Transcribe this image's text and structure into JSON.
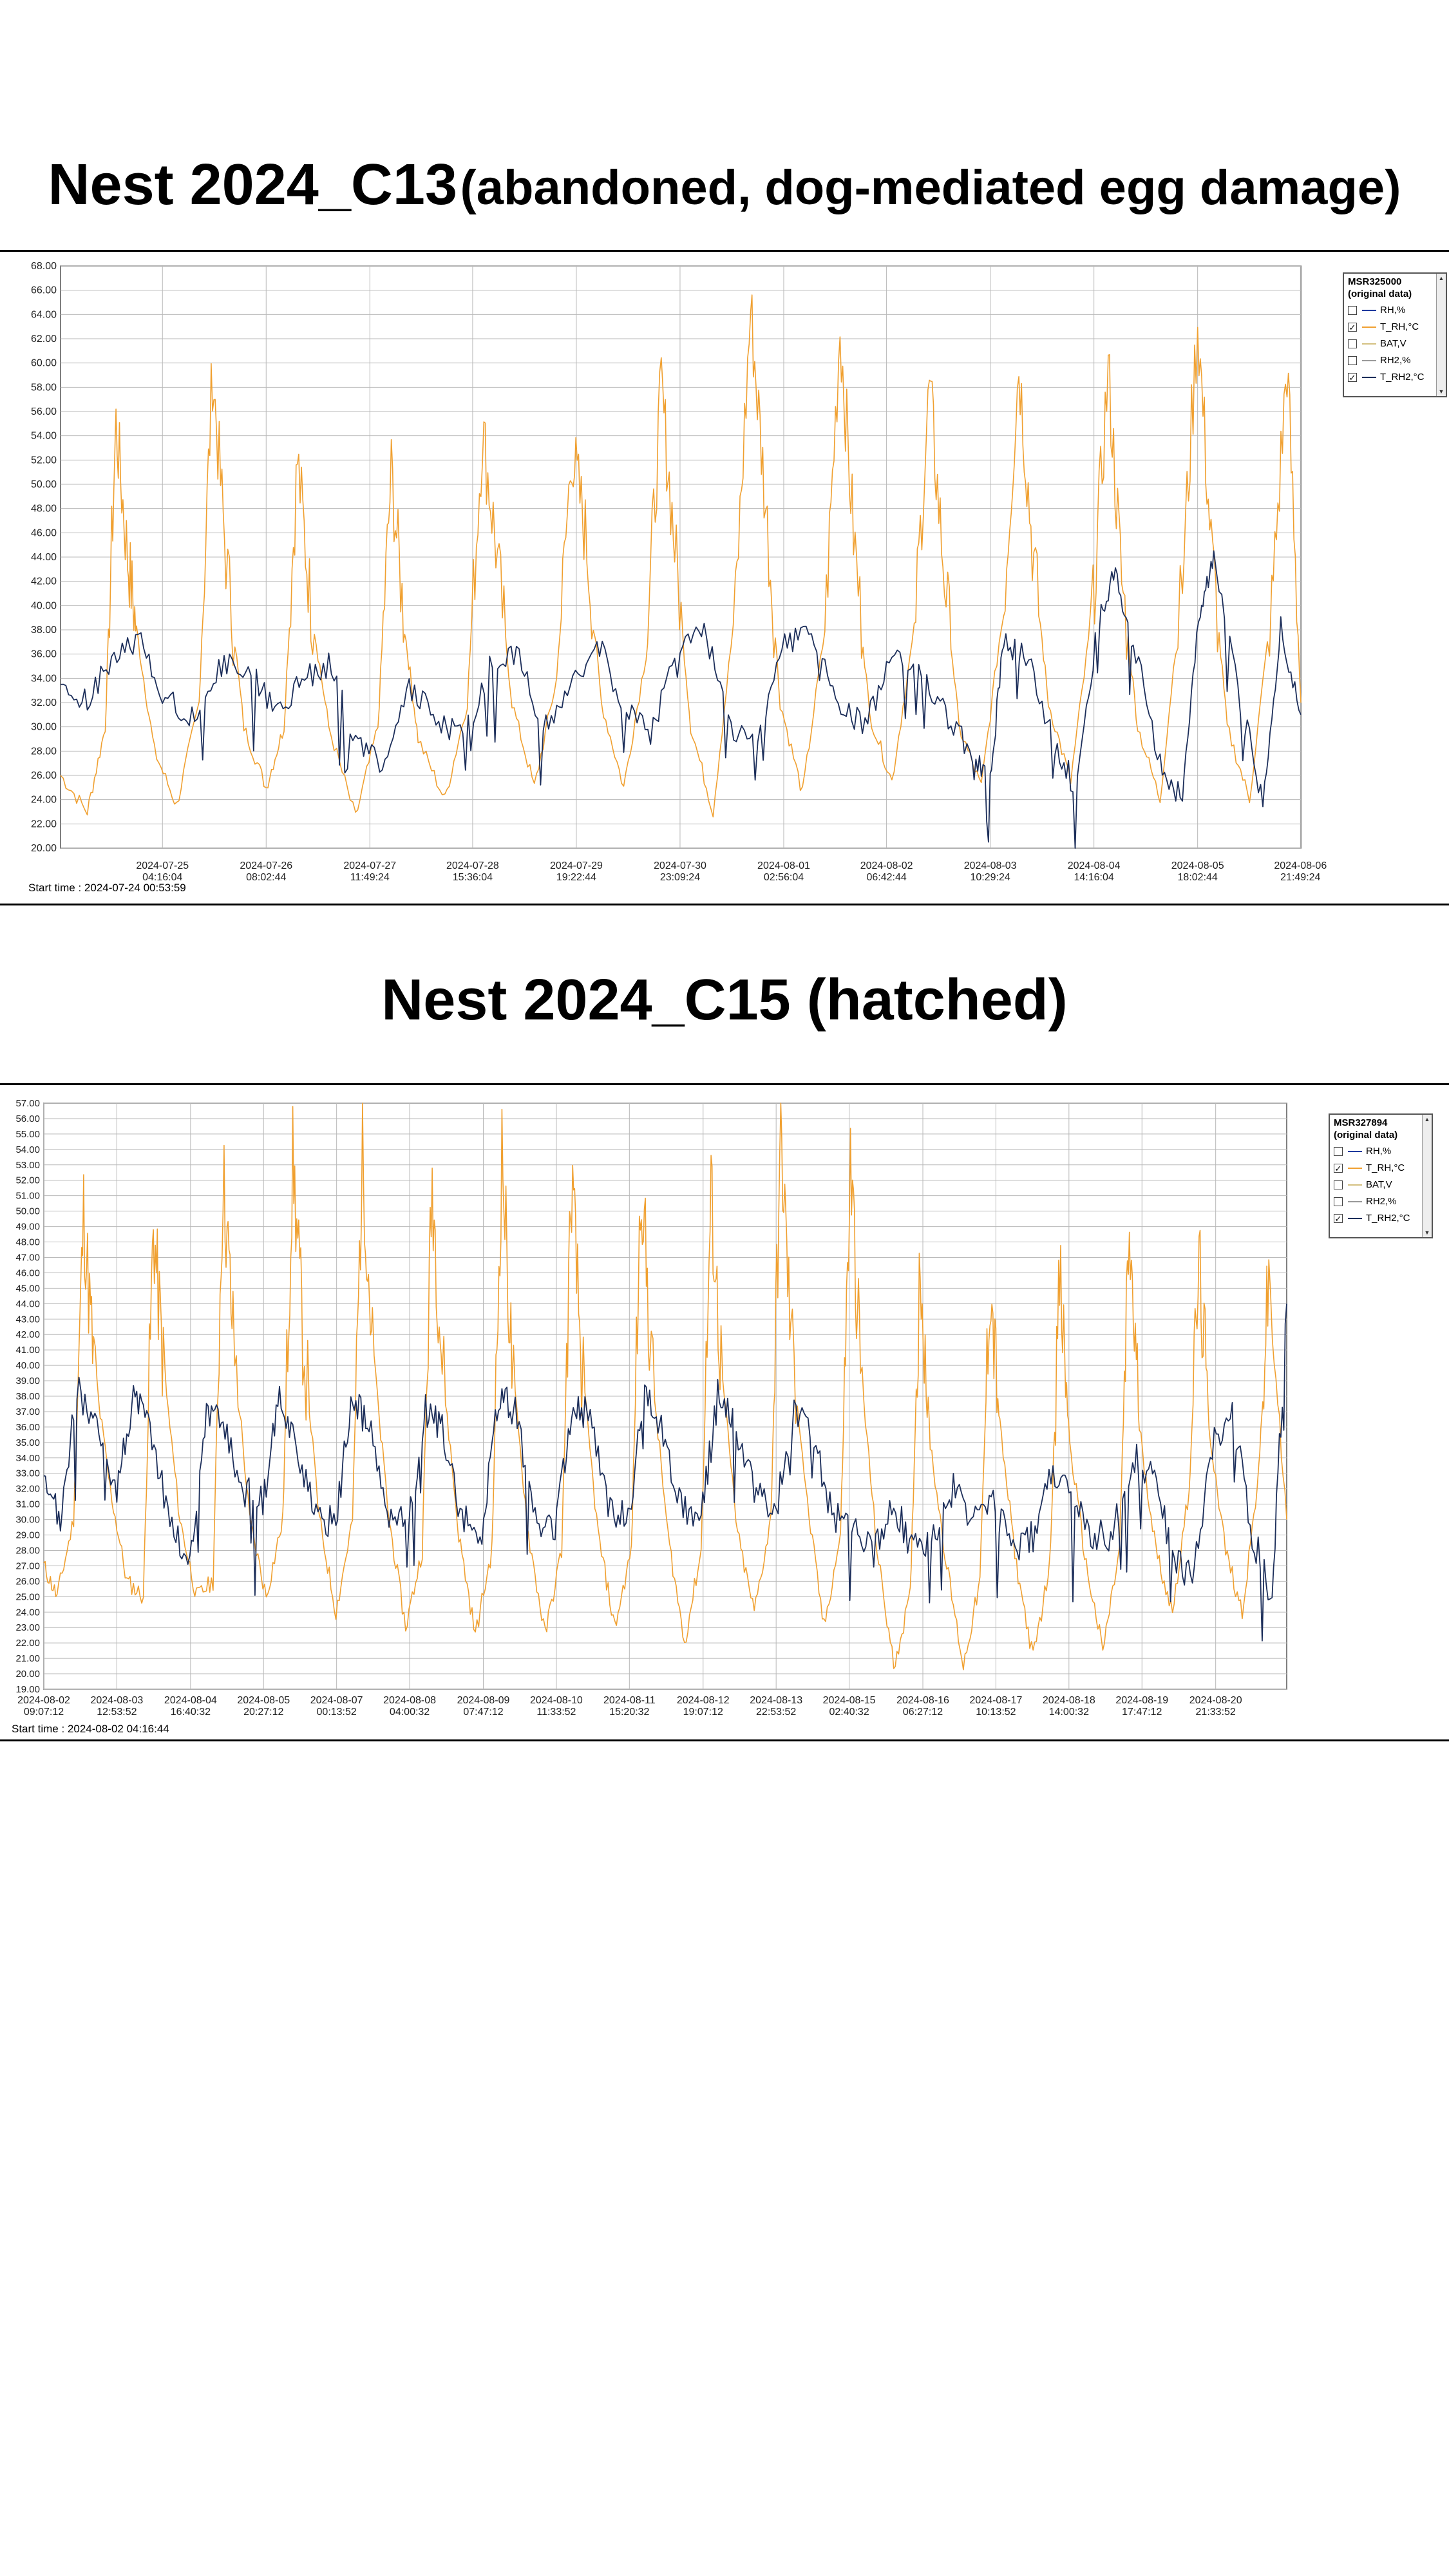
{
  "panels": [
    {
      "title_main": "Nest 2024_C13",
      "title_sub": "(abandoned, dog-mediated egg damage)",
      "start_time": "Start time : 2024-07-24 00:53:59",
      "legend": {
        "header": [
          "MSR325000",
          "(original data)"
        ],
        "items": [
          {
            "label": "RH,%",
            "checked": false,
            "color": "#1f3a9e"
          },
          {
            "label": "T_RH,°C",
            "checked": true,
            "color": "#f0a030"
          },
          {
            "label": "BAT,V",
            "checked": false,
            "color": "#d4c080"
          },
          {
            "label": "RH2,%",
            "checked": false,
            "color": "#999999"
          },
          {
            "label": "T_RH2,°C",
            "checked": true,
            "color": "#1c2e5a"
          }
        ]
      },
      "chart_data": {
        "type": "line",
        "ylim": [
          20,
          68
        ],
        "ystep": 2,
        "xlim": [
          0,
          13.875
        ],
        "x_unit": "days since start",
        "x_ticks": [
          {
            "date": "2024-07-25",
            "time": "04:16:04",
            "x": 1.14
          },
          {
            "date": "2024-07-26",
            "time": "08:02:44",
            "x": 2.3
          },
          {
            "date": "2024-07-27",
            "time": "11:49:24",
            "x": 3.46
          },
          {
            "date": "2024-07-28",
            "time": "15:36:04",
            "x": 4.61
          },
          {
            "date": "2024-07-29",
            "time": "19:22:44",
            "x": 5.77
          },
          {
            "date": "2024-07-30",
            "time": "23:09:24",
            "x": 6.93
          },
          {
            "date": "2024-08-01",
            "time": "02:56:04",
            "x": 8.09
          },
          {
            "date": "2024-08-02",
            "time": "06:42:44",
            "x": 9.24
          },
          {
            "date": "2024-08-03",
            "time": "10:29:24",
            "x": 10.4
          },
          {
            "date": "2024-08-04",
            "time": "14:16:04",
            "x": 11.56
          },
          {
            "date": "2024-08-05",
            "time": "18:02:44",
            "x": 12.72
          },
          {
            "date": "2024-08-06",
            "time": "21:49:24",
            "x": 13.87
          }
        ],
        "series": [
          {
            "name": "T_RH,°C",
            "color": "#f0a030",
            "daily_peaks": [
              55,
              59.5,
              52,
              51,
              54.5,
              53,
              58,
              64.5,
              63,
              58,
              60,
              59.5,
              63.5,
              60
            ],
            "daily_minima": [
              23,
              23.5,
              25,
              22.5,
              24,
              25,
              25,
              23,
              24.5,
              25.5,
              25,
              25.5,
              24,
              24
            ],
            "x": [
              0,
              0.3,
              0.5,
              0.62,
              0.75,
              0.85,
              1.05,
              1.3,
              1.55,
              1.7,
              1.85,
              2.05,
              2.3,
              2.5,
              2.65,
              2.8,
              3.0,
              3.3,
              3.55,
              3.7,
              3.85,
              4.0,
              4.3,
              4.55,
              4.72,
              4.87,
              5.05,
              5.3,
              5.55,
              5.72,
              5.87,
              6.05,
              6.3,
              6.55,
              6.72,
              6.87,
              7.05,
              7.3,
              7.55,
              7.72,
              7.87,
              8.05,
              8.3,
              8.55,
              8.72,
              8.87,
              9.05,
              9.3,
              9.55,
              9.72,
              9.87,
              10.05,
              10.3,
              10.55,
              10.72,
              10.87,
              11.05,
              11.3,
              11.55,
              11.72,
              11.87,
              12.05,
              12.3,
              12.55,
              12.72,
              12.87,
              13.05,
              13.3,
              13.55,
              13.72,
              13.875
            ],
            "y": [
              26,
              23,
              30,
              55,
              44,
              38,
              28,
              23.5,
              32,
              59.5,
              44,
              30,
              25,
              30,
              52,
              40,
              30,
              22.5,
              30,
              51,
              38,
              29,
              24,
              32,
              54.5,
              45,
              32,
              25,
              34,
              53,
              46,
              32,
              25,
              36,
              58,
              45,
              30,
              23,
              40,
              64.5,
              50,
              32,
              24.5,
              38,
              63,
              46,
              31,
              25.5,
              38,
              58,
              44,
              30,
              25,
              40,
              60,
              45,
              32,
              25.5,
              40,
              59.5,
              42,
              30,
              24,
              42,
              63.5,
              45,
              30,
              24,
              40,
              60,
              32
            ]
          },
          {
            "name": "T_RH2,°C",
            "color": "#1c2e5a",
            "x": [
              0,
              0.3,
              0.6,
              0.9,
              1.2,
              1.5,
              1.8,
              2.1,
              2.4,
              2.7,
              3.0,
              3.3,
              3.6,
              3.9,
              4.2,
              4.5,
              4.8,
              5.1,
              5.4,
              5.7,
              6.0,
              6.3,
              6.6,
              6.9,
              7.2,
              7.5,
              7.8,
              8.1,
              8.4,
              8.7,
              9.0,
              9.3,
              9.6,
              9.9,
              10.2,
              10.4,
              10.55,
              10.8,
              11.1,
              11.35,
              11.6,
              11.8,
              12.0,
              12.3,
              12.55,
              12.75,
              12.9,
              13.2,
              13.45,
              13.65,
              13.875
            ],
            "y": [
              33,
              32,
              36,
              37,
              32,
              31,
              35,
              35,
              31,
              34,
              35,
              29,
              27,
              33,
              31,
              29,
              35,
              36,
              30,
              33,
              37,
              32,
              29,
              37,
              38,
              30,
              29,
              37,
              38,
              32,
              30,
              36,
              35,
              31,
              28,
              26,
              37,
              36,
              29,
              25,
              38,
              43,
              37,
              27,
              24,
              40,
              44,
              32,
              24,
              38,
              31
            ]
          }
        ]
      }
    },
    {
      "title_main": "Nest 2024_C15 (hatched)",
      "title_sub": "",
      "start_time": "Start time : 2024-08-02 04:16:44",
      "legend": {
        "header": [
          "MSR327894",
          "(original data)"
        ],
        "items": [
          {
            "label": "RH,%",
            "checked": false,
            "color": "#1f3a9e"
          },
          {
            "label": "T_RH,°C",
            "checked": true,
            "color": "#f0a030"
          },
          {
            "label": "BAT,V",
            "checked": false,
            "color": "#d4c080"
          },
          {
            "label": "RH2,%",
            "checked": false,
            "color": "#999999"
          },
          {
            "label": "T_RH2,°C",
            "checked": true,
            "color": "#1c2e5a"
          }
        ]
      },
      "chart_data": {
        "type": "line",
        "ylim": [
          19,
          57
        ],
        "ystep": 1,
        "xlim": [
          0,
          18.72
        ],
        "x_unit": "days since start",
        "x_ticks": [
          {
            "date": "2024-08-02",
            "time": "09:07:12",
            "x": 0.0
          },
          {
            "date": "2024-08-03",
            "time": "12:53:52",
            "x": 1.1
          },
          {
            "date": "2024-08-04",
            "time": "16:40:32",
            "x": 2.21
          },
          {
            "date": "2024-08-05",
            "time": "20:27:12",
            "x": 3.31
          },
          {
            "date": "2024-08-07",
            "time": "00:13:52",
            "x": 4.41
          },
          {
            "date": "2024-08-08",
            "time": "04:00:32",
            "x": 5.51
          },
          {
            "date": "2024-08-09",
            "time": "07:47:12",
            "x": 6.62
          },
          {
            "date": "2024-08-10",
            "time": "11:33:52",
            "x": 7.72
          },
          {
            "date": "2024-08-11",
            "time": "15:20:32",
            "x": 8.82
          },
          {
            "date": "2024-08-12",
            "time": "19:07:12",
            "x": 9.93
          },
          {
            "date": "2024-08-13",
            "time": "22:53:52",
            "x": 11.03
          },
          {
            "date": "2024-08-15",
            "time": "02:40:32",
            "x": 12.13
          },
          {
            "date": "2024-08-16",
            "time": "06:27:12",
            "x": 13.24
          },
          {
            "date": "2024-08-17",
            "time": "10:13:52",
            "x": 14.34
          },
          {
            "date": "2024-08-18",
            "time": "14:00:32",
            "x": 15.44
          },
          {
            "date": "2024-08-19",
            "time": "17:47:12",
            "x": 16.54
          },
          {
            "date": "2024-08-20",
            "time": "21:33:52",
            "x": 17.65
          }
        ],
        "series": [
          {
            "name": "T_RH,°C",
            "color": "#f0a030",
            "daily_peaks": [
              50,
              49,
              52.5,
              53.5,
              54,
              52,
              54,
              52,
              52.5,
              51,
              55,
              53,
              47,
              45.5,
              45.5,
              48.5,
              46.5,
              45.5
            ],
            "daily_minima": [
              25,
              25,
              25,
              24.5,
              24,
              23,
              22.5,
              22.5,
              23,
              22,
              24,
              23,
              20.5,
              20.5,
              21,
              21.5,
              24,
              24
            ],
            "x": [
              0,
              0.2,
              0.45,
              0.6,
              0.75,
              1.0,
              1.25,
              1.5,
              1.65,
              1.8,
              2.05,
              2.3,
              2.55,
              2.7,
              2.85,
              3.1,
              3.35,
              3.6,
              3.75,
              3.9,
              4.15,
              4.4,
              4.65,
              4.8,
              4.95,
              5.2,
              5.45,
              5.7,
              5.85,
              6.0,
              6.25,
              6.5,
              6.75,
              6.9,
              7.05,
              7.3,
              7.55,
              7.8,
              7.95,
              8.1,
              8.35,
              8.6,
              8.85,
              9.0,
              9.15,
              9.4,
              9.65,
              9.9,
              10.05,
              10.2,
              10.45,
              10.7,
              10.95,
              11.1,
              11.25,
              11.5,
              11.75,
              12.0,
              12.15,
              12.3,
              12.55,
              12.8,
              13.05,
              13.2,
              13.35,
              13.6,
              13.85,
              14.1,
              14.25,
              14.4,
              14.65,
              14.9,
              15.15,
              15.3,
              15.45,
              15.7,
              15.95,
              16.2,
              16.35,
              16.5,
              16.75,
              17.0,
              17.25,
              17.4,
              17.55,
              17.8,
              18.05,
              18.3,
              18.45,
              18.72
            ],
            "y": [
              27,
              25,
              30,
              50,
              40,
              32,
              26,
              25,
              49,
              40,
              30,
              25,
              26,
              52.5,
              42,
              30,
              25,
              30,
              53.5,
              42,
              30,
              24,
              30,
              54,
              41,
              30,
              23,
              28,
              52,
              40,
              29,
              22.5,
              28,
              54,
              40,
              29,
              22.5,
              28,
              52,
              40,
              29,
              23,
              28,
              52.5,
              40,
              29,
              22,
              28,
              51,
              40,
              29,
              24,
              30,
              55,
              42,
              31,
              23,
              29,
              53,
              40,
              28,
              20.5,
              25,
              47,
              35,
              27,
              20.5,
              26,
              45.5,
              36,
              27,
              21,
              27,
              45.5,
              35,
              27,
              21.5,
              28,
              48.5,
              36,
              28,
              24,
              32,
              46.5,
              36,
              28,
              24,
              33,
              45.5,
              30
            ]
          },
          {
            "name": "T_RH2,°C",
            "color": "#1c2e5a",
            "x": [
              0,
              0.25,
              0.5,
              0.8,
              1.1,
              1.35,
              1.6,
              1.9,
              2.2,
              2.45,
              2.7,
              3.0,
              3.3,
              3.55,
              3.8,
              4.1,
              4.4,
              4.65,
              4.9,
              5.2,
              5.5,
              5.75,
              6.0,
              6.3,
              6.6,
              6.85,
              7.1,
              7.4,
              7.7,
              7.95,
              8.2,
              8.5,
              8.8,
              9.05,
              9.3,
              9.6,
              9.9,
              10.15,
              10.4,
              10.7,
              11.0,
              11.3,
              11.6,
              11.9,
              12.2,
              12.5,
              12.8,
              13.1,
              13.4,
              13.7,
              14.0,
              14.3,
              14.6,
              14.9,
              15.2,
              15.5,
              15.8,
              16.1,
              16.4,
              16.7,
              17.0,
              17.3,
              17.6,
              17.9,
              18.2,
              18.5,
              18.72
            ],
            "y": [
              32,
              30,
              38.5,
              36,
              32,
              38,
              36,
              30,
              27,
              37,
              36,
              32,
              31,
              38,
              35,
              30,
              30,
              38,
              36,
              30,
              30,
              37,
              36,
              30,
              29,
              38,
              37,
              30,
              29,
              37,
              37,
              31,
              30,
              38,
              36,
              31,
              30,
              38,
              36,
              32,
              30,
              37,
              35,
              30,
              30,
              28,
              31,
              28,
              29,
              32,
              30,
              31,
              28,
              29,
              33,
              31,
              29,
              29,
              34,
              33,
              28,
              26,
              35,
              37,
              29,
              25,
              44
            ]
          }
        ]
      }
    }
  ]
}
